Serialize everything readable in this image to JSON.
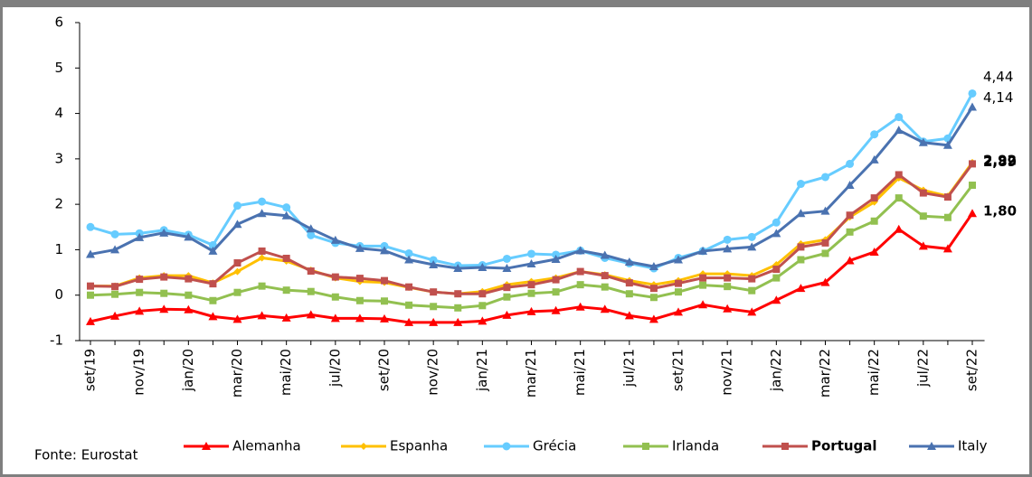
{
  "chart_data": {
    "type": "line",
    "source": "Fonte:  Eurostat",
    "categories": [
      "set/19",
      null,
      "nov/19",
      null,
      "jan/20",
      null,
      "mar/20",
      null,
      "mai/20",
      null,
      "jul/20",
      null,
      "set/20",
      null,
      "nov/20",
      null,
      "jan/21",
      null,
      "mar/21",
      null,
      "mai/21",
      null,
      "jul/21",
      null,
      "set/21",
      null,
      "nov/21",
      null,
      "jan/22",
      null,
      "mar/22",
      null,
      "mai/22",
      null,
      "jul/22",
      null,
      "set/22"
    ],
    "ylim": [
      -1,
      6
    ],
    "yticks": [
      -1,
      0,
      1,
      2,
      3,
      4,
      5,
      6
    ],
    "grid": false,
    "series": [
      {
        "name": "Alemanha",
        "color": "#ff0000",
        "marker": "triangle",
        "values": [
          -0.58,
          -0.46,
          -0.35,
          -0.31,
          -0.32,
          -0.47,
          -0.53,
          -0.45,
          -0.5,
          -0.43,
          -0.51,
          -0.51,
          -0.52,
          -0.6,
          -0.6,
          -0.6,
          -0.57,
          -0.44,
          -0.36,
          -0.34,
          -0.26,
          -0.31,
          -0.45,
          -0.53,
          -0.37,
          -0.21,
          -0.3,
          -0.37,
          -0.11,
          0.15,
          0.28,
          0.76,
          0.95,
          1.45,
          1.08,
          1.02,
          1.8
        ],
        "value_labels": [
          null,
          null,
          null,
          null,
          null,
          null,
          null,
          null,
          null,
          null,
          null,
          null,
          null,
          null,
          null,
          null,
          null,
          null,
          null,
          null,
          null,
          null,
          null,
          null,
          null,
          null,
          null,
          null,
          null,
          null,
          null,
          null,
          null,
          null,
          null,
          null,
          "1,80"
        ]
      },
      {
        "name": "Espanha",
        "color": "#ffc000",
        "marker": "diamond",
        "values": [
          0.2,
          0.2,
          0.38,
          0.43,
          0.43,
          0.27,
          0.52,
          0.82,
          0.75,
          0.55,
          0.38,
          0.3,
          0.28,
          0.17,
          0.07,
          0.03,
          0.08,
          0.23,
          0.3,
          0.38,
          0.52,
          0.45,
          0.32,
          0.23,
          0.32,
          0.47,
          0.47,
          0.43,
          0.67,
          1.13,
          1.22,
          1.72,
          2.05,
          2.58,
          2.31,
          2.18,
          2.92
        ],
        "value_labels": [
          null,
          null,
          null,
          null,
          null,
          null,
          null,
          null,
          null,
          null,
          null,
          null,
          null,
          null,
          null,
          null,
          null,
          null,
          null,
          null,
          null,
          null,
          null,
          null,
          null,
          null,
          null,
          null,
          null,
          null,
          null,
          null,
          null,
          null,
          null,
          null,
          "2,92"
        ]
      },
      {
        "name": "Grécia",
        "color": "#66ccff",
        "marker": "circle",
        "values": [
          1.5,
          1.34,
          1.36,
          1.43,
          1.33,
          1.1,
          1.97,
          2.06,
          1.93,
          1.32,
          1.15,
          1.08,
          1.08,
          0.92,
          0.77,
          0.65,
          0.66,
          0.8,
          0.91,
          0.89,
          0.98,
          0.82,
          0.7,
          0.59,
          0.82,
          0.97,
          1.22,
          1.28,
          1.6,
          2.45,
          2.6,
          2.89,
          3.54,
          3.92,
          3.38,
          3.45,
          4.44
        ],
        "value_labels": [
          null,
          null,
          null,
          null,
          null,
          null,
          null,
          null,
          null,
          null,
          null,
          null,
          null,
          null,
          null,
          null,
          null,
          null,
          null,
          null,
          null,
          null,
          null,
          null,
          null,
          null,
          null,
          null,
          null,
          null,
          null,
          null,
          null,
          null,
          null,
          null,
          "4,44"
        ]
      },
      {
        "name": "Irlanda",
        "color": "#92c050",
        "marker": "square",
        "values": [
          0.0,
          0.02,
          0.06,
          0.04,
          0.0,
          -0.12,
          0.06,
          0.2,
          0.11,
          0.08,
          -0.04,
          -0.12,
          -0.13,
          -0.22,
          -0.25,
          -0.28,
          -0.23,
          -0.04,
          0.04,
          0.07,
          0.23,
          0.18,
          0.03,
          -0.05,
          0.07,
          0.22,
          0.19,
          0.1,
          0.38,
          0.78,
          0.92,
          1.39,
          1.63,
          2.14,
          1.74,
          1.71,
          2.42
        ]
      },
      {
        "name": "Portugal",
        "color": "#c0504d",
        "marker": "square",
        "values": [
          0.2,
          0.19,
          0.35,
          0.4,
          0.36,
          0.25,
          0.71,
          0.97,
          0.81,
          0.53,
          0.4,
          0.37,
          0.32,
          0.18,
          0.07,
          0.03,
          0.03,
          0.17,
          0.23,
          0.34,
          0.52,
          0.43,
          0.27,
          0.15,
          0.26,
          0.38,
          0.38,
          0.36,
          0.57,
          1.06,
          1.15,
          1.76,
          2.14,
          2.65,
          2.25,
          2.16,
          2.89
        ],
        "value_labels": [
          null,
          null,
          null,
          null,
          null,
          null,
          null,
          null,
          null,
          null,
          null,
          null,
          null,
          null,
          null,
          null,
          null,
          null,
          null,
          null,
          null,
          null,
          null,
          null,
          null,
          null,
          null,
          null,
          null,
          null,
          null,
          null,
          null,
          null,
          null,
          null,
          "2,89"
        ]
      },
      {
        "name": "Italy",
        "color": "#4a72b0",
        "marker": "triangle",
        "values": [
          0.9,
          1.0,
          1.27,
          1.37,
          1.28,
          0.97,
          1.56,
          1.8,
          1.75,
          1.46,
          1.21,
          1.03,
          0.98,
          0.78,
          0.67,
          0.59,
          0.61,
          0.59,
          0.69,
          0.79,
          0.98,
          0.88,
          0.73,
          0.63,
          0.78,
          0.97,
          1.02,
          1.06,
          1.36,
          1.8,
          1.85,
          2.42,
          2.98,
          3.63,
          3.36,
          3.3,
          4.14
        ],
        "value_labels": [
          null,
          null,
          null,
          null,
          null,
          null,
          null,
          null,
          null,
          null,
          null,
          null,
          null,
          null,
          null,
          null,
          null,
          null,
          null,
          null,
          null,
          null,
          null,
          null,
          null,
          null,
          null,
          null,
          null,
          null,
          null,
          null,
          null,
          null,
          null,
          null,
          "4,14"
        ]
      }
    ]
  }
}
